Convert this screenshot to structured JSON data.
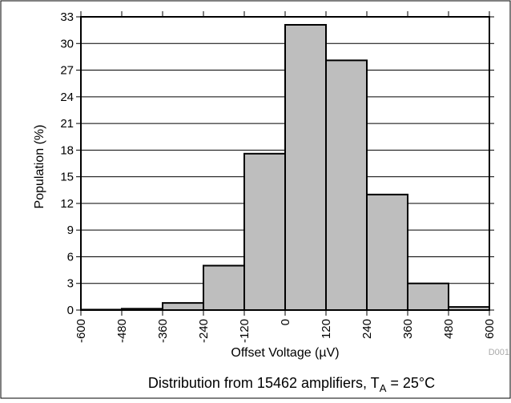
{
  "chart_data": {
    "type": "bar",
    "xlabel": "Offset Voltage (µV)",
    "ylabel": "Population (%)",
    "caption_prefix": "Distribution from 15462 amplifiers, T",
    "caption_subscript": "A",
    "caption_suffix": " = 25°C",
    "figure_id": "D001",
    "ylim": [
      0,
      33
    ],
    "xlim": [
      -600,
      600
    ],
    "yticks": [
      0,
      3,
      6,
      9,
      12,
      15,
      18,
      21,
      24,
      27,
      30,
      33
    ],
    "xticks": [
      -600,
      -480,
      -360,
      -240,
      -120,
      0,
      120,
      240,
      360,
      480,
      600
    ],
    "xtick_labels": [
      "-600",
      "-480",
      "-360",
      "-240",
      "-120",
      "0",
      "120",
      "240",
      "360",
      "480",
      "600"
    ],
    "grid": true,
    "bins": [
      {
        "from": -600,
        "to": -480,
        "value": 0.05
      },
      {
        "from": -480,
        "to": -360,
        "value": 0.15
      },
      {
        "from": -360,
        "to": -240,
        "value": 0.8
      },
      {
        "from": -240,
        "to": -120,
        "value": 5.0
      },
      {
        "from": -120,
        "to": 0,
        "value": 17.6
      },
      {
        "from": 0,
        "to": 120,
        "value": 32.1
      },
      {
        "from": 120,
        "to": 240,
        "value": 28.1
      },
      {
        "from": 240,
        "to": 360,
        "value": 13.0
      },
      {
        "from": 360,
        "to": 480,
        "value": 3.0
      },
      {
        "from": 480,
        "to": 600,
        "value": 0.35
      }
    ],
    "colors": {
      "bar_fill": "#bebebe",
      "bar_stroke": "#000000",
      "grid": "#000000",
      "figure_id": "#aaaaaa"
    }
  }
}
